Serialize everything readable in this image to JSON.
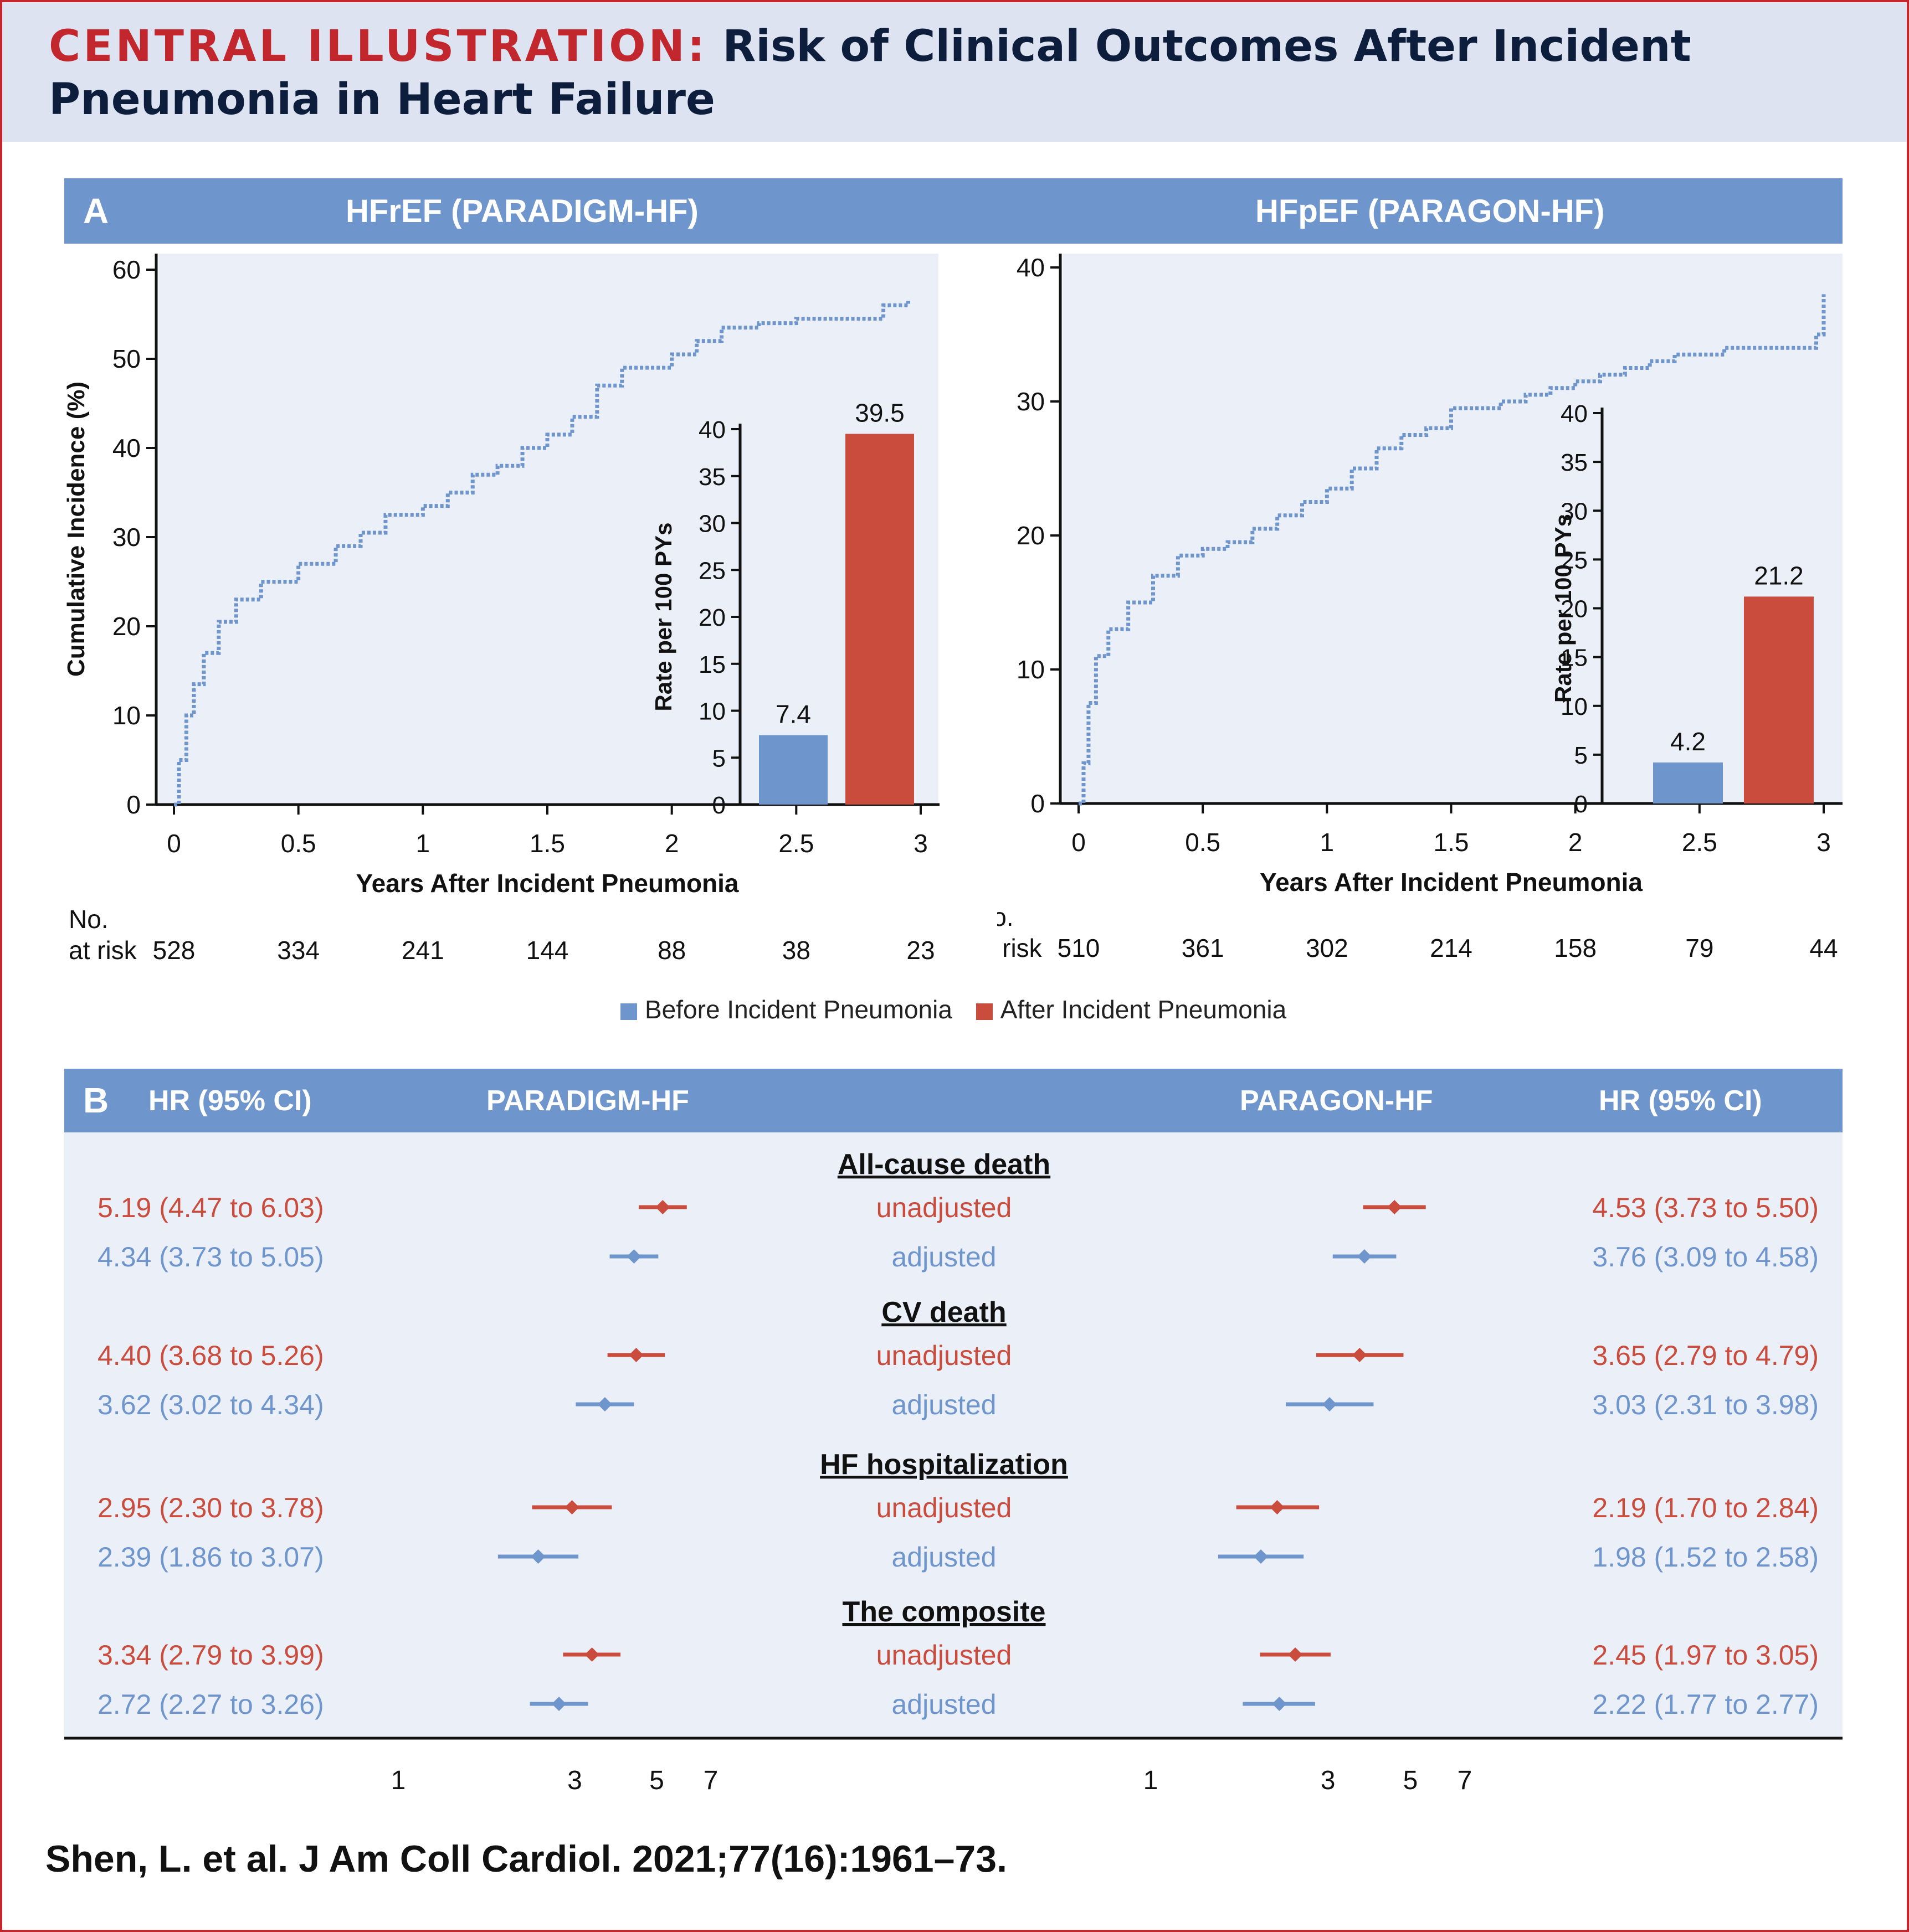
{
  "header": {
    "title_lead": "CENTRAL ILLUSTRATION:",
    "title_rest": "Risk of Clinical Outcomes After Incident Pneumonia in Heart Failure"
  },
  "panel_a": {
    "letter": "A",
    "at_risk_label_1": "No.",
    "at_risk_label_2": "at risk",
    "legend": [
      {
        "label": "Before Incident Pneumonia",
        "color": "#6f95cd"
      },
      {
        "label": "After Incident Pneumonia",
        "color": "#c94c3d"
      }
    ]
  },
  "panel_b": {
    "letter": "B",
    "left_hr_header": "HR (95% CI)",
    "left_trial": "PARADIGM-HF",
    "right_trial": "PARAGON-HF",
    "right_hr_header": "HR (95% CI)"
  },
  "citation": "Shen, L. et al. J Am Coll Cardiol. 2021;77(16):1961–73.",
  "chart_data": [
    {
      "type": "line",
      "panel": "A-left",
      "title": "HFrEF (PARADIGM-HF)",
      "xlabel": "Years After Incident Pneumonia",
      "ylabel": "Cumulative Incidence (%)",
      "xlim": [
        0,
        3
      ],
      "ylim": [
        0,
        60
      ],
      "xticks": [
        "0",
        "0.5",
        "1",
        "1.5",
        "2",
        "2.5",
        "3"
      ],
      "yticks": [
        "0",
        "10",
        "20",
        "30",
        "40",
        "50",
        "60"
      ],
      "color": "#6f95cd",
      "x": [
        0,
        0.02,
        0.05,
        0.08,
        0.12,
        0.18,
        0.25,
        0.35,
        0.5,
        0.65,
        0.75,
        0.85,
        1.0,
        1.1,
        1.2,
        1.3,
        1.4,
        1.5,
        1.6,
        1.7,
        1.8,
        2.0,
        2.1,
        2.2,
        2.35,
        2.4,
        2.5,
        2.6,
        2.7,
        2.8,
        2.85,
        2.95
      ],
      "y": [
        0,
        5,
        10,
        13.5,
        17,
        20.5,
        23,
        25,
        27,
        29,
        30.5,
        32.5,
        33.5,
        35,
        37,
        38,
        40,
        41.5,
        43.5,
        47,
        49,
        50.5,
        52,
        53.5,
        54,
        54,
        54.5,
        54.5,
        54.5,
        54.5,
        56,
        56.5
      ],
      "at_risk": [
        "528",
        "334",
        "241",
        "144",
        "88",
        "38",
        "23"
      ],
      "inset": {
        "type": "bar",
        "ylabel": "Rate per 100 PYs",
        "ylim": [
          0,
          40
        ],
        "yticks": [
          "0",
          "5",
          "10",
          "15",
          "20",
          "25",
          "30",
          "35",
          "40"
        ],
        "values": [
          7.4,
          39.5
        ],
        "labels": [
          "7.4",
          "39.5"
        ],
        "colors": [
          "#6f95cd",
          "#c94c3d"
        ]
      }
    },
    {
      "type": "line",
      "panel": "A-right",
      "title": "HFpEF (PARAGON-HF)",
      "xlabel": "Years After Incident Pneumonia",
      "ylabel": "Cumulative Incidence (%)",
      "xlim": [
        0,
        3
      ],
      "ylim": [
        0,
        40
      ],
      "xticks": [
        "0",
        "0.5",
        "1",
        "1.5",
        "2",
        "2.5",
        "3"
      ],
      "yticks": [
        "0",
        "10",
        "20",
        "30",
        "40"
      ],
      "color": "#6f95cd",
      "x": [
        0,
        0.02,
        0.04,
        0.07,
        0.12,
        0.2,
        0.3,
        0.4,
        0.5,
        0.6,
        0.7,
        0.8,
        0.9,
        1.0,
        1.1,
        1.2,
        1.3,
        1.4,
        1.5,
        1.6,
        1.7,
        1.8,
        1.9,
        2.0,
        2.1,
        2.2,
        2.3,
        2.4,
        2.5,
        2.6,
        2.7,
        2.8,
        2.9,
        2.97,
        3.0
      ],
      "y": [
        0,
        3,
        7.5,
        11,
        13,
        15,
        17,
        18.5,
        19,
        19.5,
        20.5,
        21.5,
        22.5,
        23.5,
        25,
        26.5,
        27.5,
        28,
        29.5,
        29.5,
        30,
        30.5,
        31,
        31.5,
        32,
        32.5,
        33,
        33.5,
        33.5,
        34,
        34,
        34,
        34,
        35,
        38
      ],
      "at_risk": [
        "510",
        "361",
        "302",
        "214",
        "158",
        "79",
        "44"
      ],
      "inset": {
        "type": "bar",
        "ylabel": "Rate per 100 PYs",
        "ylim": [
          0,
          40
        ],
        "yticks": [
          "0",
          "5",
          "10",
          "15",
          "20",
          "25",
          "30",
          "35",
          "40"
        ],
        "values": [
          4.2,
          21.2
        ],
        "labels": [
          "4.2",
          "21.2"
        ],
        "colors": [
          "#6f95cd",
          "#c94c3d"
        ]
      }
    },
    {
      "type": "scatter",
      "panel": "B",
      "scale": "log",
      "xticks": [
        "1",
        "3",
        "5",
        "7"
      ],
      "groups": [
        {
          "name": "All-cause death",
          "rows": [
            {
              "label": "unadjusted",
              "color": "#c94c3d",
              "left": {
                "text": "5.19 (4.47 to 6.03)",
                "hr": 5.19,
                "lo": 4.47,
                "hi": 6.03
              },
              "right": {
                "text": "4.53 (3.73 to 5.50)",
                "hr": 4.53,
                "lo": 3.73,
                "hi": 5.5
              }
            },
            {
              "label": "adjusted",
              "color": "#6f95cd",
              "left": {
                "text": "4.34 (3.73 to 5.05)",
                "hr": 4.34,
                "lo": 3.73,
                "hi": 5.05
              },
              "right": {
                "text": "3.76 (3.09 to 4.58)",
                "hr": 3.76,
                "lo": 3.09,
                "hi": 4.58
              }
            }
          ]
        },
        {
          "name": "CV death",
          "rows": [
            {
              "label": "unadjusted",
              "color": "#c94c3d",
              "left": {
                "text": "4.40 (3.68 to 5.26)",
                "hr": 4.4,
                "lo": 3.68,
                "hi": 5.26
              },
              "right": {
                "text": "3.65 (2.79 to 4.79)",
                "hr": 3.65,
                "lo": 2.79,
                "hi": 4.79
              }
            },
            {
              "label": "adjusted",
              "color": "#6f95cd",
              "left": {
                "text": "3.62 (3.02 to 4.34)",
                "hr": 3.62,
                "lo": 3.02,
                "hi": 4.34
              },
              "right": {
                "text": "3.03 (2.31 to 3.98)",
                "hr": 3.03,
                "lo": 2.31,
                "hi": 3.98
              }
            }
          ]
        },
        {
          "name": "HF hospitalization",
          "rows": [
            {
              "label": "unadjusted",
              "color": "#c94c3d",
              "left": {
                "text": "2.95 (2.30 to 3.78)",
                "hr": 2.95,
                "lo": 2.3,
                "hi": 3.78
              },
              "right": {
                "text": "2.19 (1.70 to 2.84)",
                "hr": 2.19,
                "lo": 1.7,
                "hi": 2.84
              }
            },
            {
              "label": "adjusted",
              "color": "#6f95cd",
              "left": {
                "text": "2.39 (1.86 to 3.07)",
                "hr": 2.39,
                "lo": 1.86,
                "hi": 3.07
              },
              "right": {
                "text": "1.98 (1.52 to 2.58)",
                "hr": 1.98,
                "lo": 1.52,
                "hi": 2.58
              }
            }
          ]
        },
        {
          "name": "The composite",
          "rows": [
            {
              "label": "unadjusted",
              "color": "#c94c3d",
              "left": {
                "text": "3.34 (2.79 to 3.99)",
                "hr": 3.34,
                "lo": 2.79,
                "hi": 3.99
              },
              "right": {
                "text": "2.45 (1.97 to 3.05)",
                "hr": 2.45,
                "lo": 1.97,
                "hi": 3.05
              }
            },
            {
              "label": "adjusted",
              "color": "#6f95cd",
              "left": {
                "text": "2.72 (2.27 to 3.26)",
                "hr": 2.72,
                "lo": 2.27,
                "hi": 3.26
              },
              "right": {
                "text": "2.22 (1.77 to 2.77)",
                "hr": 2.22,
                "lo": 1.77,
                "hi": 2.77
              }
            }
          ]
        }
      ]
    }
  ]
}
